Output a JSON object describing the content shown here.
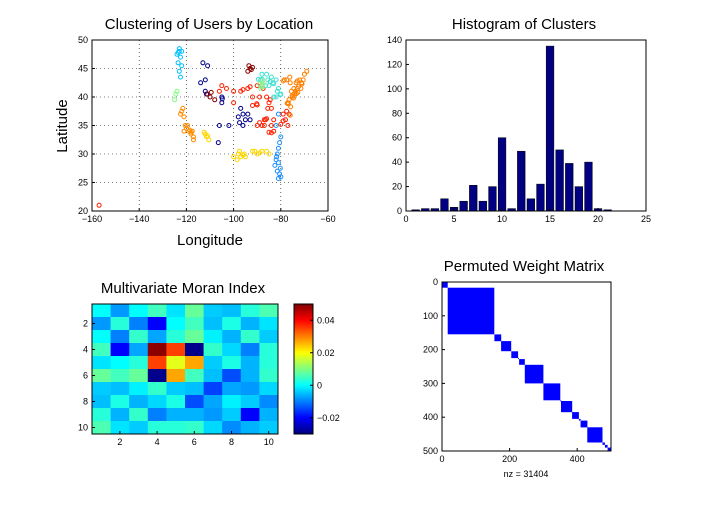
{
  "chart_data": [
    {
      "id": "scatter",
      "type": "scatter",
      "title": "Clustering of Users by Location",
      "xlabel": "Longitude",
      "ylabel": "Latitude",
      "xlim": [
        -160,
        -60
      ],
      "ylim": [
        20,
        50
      ],
      "xticks": [
        -160,
        -140,
        -120,
        -100,
        -80,
        -60
      ],
      "yticks": [
        20,
        25,
        30,
        35,
        40,
        45,
        50
      ],
      "grid": true,
      "clusters": [
        {
          "color": "#00bfff",
          "points": [
            [
              -124,
              47.5
            ],
            [
              -123,
              48
            ],
            [
              -122.5,
              47
            ],
            [
              -123.5,
              46
            ],
            [
              -122,
              45.5
            ],
            [
              -123,
              44.5
            ],
            [
              -122.5,
              43.5
            ],
            [
              -123,
              48.5
            ],
            [
              -122,
              48
            ],
            [
              -123.5,
              47.8
            ]
          ]
        },
        {
          "color": "#7fff7f",
          "points": [
            [
              -124.5,
              40.5
            ],
            [
              -125,
              39.5
            ],
            [
              -124,
              41
            ]
          ]
        },
        {
          "color": "#ff8c00",
          "points": [
            [
              -122,
              37.5
            ],
            [
              -121.5,
              38
            ],
            [
              -122.5,
              37
            ],
            [
              -121,
              36.5
            ],
            [
              -120.5,
              35
            ],
            [
              -121,
              34
            ],
            [
              -120,
              34.5
            ],
            [
              -119,
              34
            ],
            [
              -118,
              33.8
            ],
            [
              -117.5,
              34
            ],
            [
              -118.5,
              34.2
            ],
            [
              -117,
              33
            ],
            [
              -117,
              32.5
            ],
            [
              -118,
              33.5
            ],
            [
              -119.5,
              35
            ]
          ]
        },
        {
          "color": "#00008b",
          "points": [
            [
              -113,
              46
            ],
            [
              -111,
              45.5
            ],
            [
              -112,
              43
            ],
            [
              -114,
              42.5
            ],
            [
              -112,
              41
            ],
            [
              -111.5,
              40.5
            ],
            [
              -105,
              40
            ],
            [
              -104.8,
              39.7
            ],
            [
              -105,
              39
            ],
            [
              -102,
              35
            ],
            [
              -106,
              35
            ],
            [
              -106.5,
              32
            ],
            [
              -97,
              38
            ],
            [
              -96,
              37
            ],
            [
              -95,
              36
            ],
            [
              -97.5,
              35.5
            ],
            [
              -93,
              36
            ],
            [
              -94,
              37
            ],
            [
              -98,
              36.5
            ],
            [
              -96,
              35
            ]
          ]
        },
        {
          "color": "#1e90ff",
          "points": [
            [
              -81,
              37
            ],
            [
              -82,
              35
            ],
            [
              -80,
              33
            ],
            [
              -80.5,
              32
            ],
            [
              -81,
              31
            ],
            [
              -81.5,
              30
            ],
            [
              -82,
              29
            ],
            [
              -81,
              28.5
            ],
            [
              -82.5,
              28
            ],
            [
              -81.5,
              27
            ],
            [
              -80.5,
              26.5
            ],
            [
              -80,
              26
            ],
            [
              -81,
              25.7
            ],
            [
              -80.2,
              27.5
            ],
            [
              -81.8,
              29.5
            ]
          ]
        },
        {
          "color": "#ffd700",
          "points": [
            [
              -112,
              33.5
            ],
            [
              -111.5,
              33
            ],
            [
              -110.5,
              32.5
            ],
            [
              -112.5,
              33.8
            ],
            [
              -111,
              33.2
            ],
            [
              -98,
              30
            ],
            [
              -97.5,
              30.5
            ],
            [
              -97,
              29.5
            ],
            [
              -96,
              29.8
            ],
            [
              -95,
              29.5
            ],
            [
              -95.5,
              30
            ],
            [
              -100,
              29.5
            ],
            [
              -98.5,
              29
            ],
            [
              -91,
              30.5
            ],
            [
              -90,
              30
            ],
            [
              -92,
              30.5
            ],
            [
              -89,
              30.2
            ],
            [
              -88,
              30.5
            ],
            [
              -86,
              30.5
            ],
            [
              -85,
              30
            ]
          ]
        },
        {
          "color": "#8b0000",
          "points": [
            [
              -93,
              45
            ],
            [
              -92.5,
              44.8
            ],
            [
              -94,
              44.5
            ],
            [
              -92,
              45.2
            ],
            [
              -93.5,
              45.5
            ],
            [
              -110,
              40
            ],
            [
              -109.5,
              40.8
            ],
            [
              -111,
              40.5
            ],
            [
              -108,
              39.5
            ]
          ]
        },
        {
          "color": "#ff2000",
          "points": [
            [
              -105,
              42
            ],
            [
              -106,
              41
            ],
            [
              -103,
              41.5
            ],
            [
              -100,
              41
            ],
            [
              -100,
              39
            ],
            [
              -97,
              41
            ],
            [
              -96,
              41.3
            ],
            [
              -94,
              41.5
            ],
            [
              -93,
              41.8
            ],
            [
              -92,
              40
            ],
            [
              -90,
              42
            ],
            [
              -89,
              40
            ],
            [
              -88,
              41.8
            ],
            [
              -87.5,
              41.5
            ],
            [
              -86,
              40
            ],
            [
              -85,
              39
            ],
            [
              -84.5,
              39.5
            ],
            [
              -84,
              38
            ],
            [
              -85.5,
              38
            ],
            [
              -86.5,
              36
            ],
            [
              -87,
              35
            ],
            [
              -88,
              35
            ],
            [
              -89,
              35.5
            ],
            [
              -90,
              35
            ],
            [
              -84,
              35
            ],
            [
              -83,
              36
            ],
            [
              -83,
              34
            ],
            [
              -84,
              33.7
            ],
            [
              -85,
              33.8
            ],
            [
              -79,
              35.8
            ],
            [
              -80,
              35.2
            ],
            [
              -77,
              35
            ],
            [
              -78,
              36
            ],
            [
              -79,
              37
            ],
            [
              -77.5,
              37.5
            ],
            [
              -76.5,
              37
            ],
            [
              -90,
              38.6
            ],
            [
              -90.2,
              38.8
            ],
            [
              -92,
              38.5
            ],
            [
              -86,
              36.2
            ],
            [
              -87,
              36
            ]
          ]
        },
        {
          "color": "#ff7f00",
          "points": [
            [
              -77,
              39
            ],
            [
              -76.5,
              39.5
            ],
            [
              -75,
              40
            ],
            [
              -75.2,
              40.2
            ],
            [
              -74,
              40.7
            ],
            [
              -74.2,
              40.5
            ],
            [
              -73.8,
              41
            ],
            [
              -73,
              41.5
            ],
            [
              -72.5,
              41.8
            ],
            [
              -71,
              42.3
            ],
            [
              -71.2,
              42.5
            ],
            [
              -70.5,
              43
            ],
            [
              -70,
              44
            ],
            [
              -69,
              44.5
            ],
            [
              -72,
              43
            ],
            [
              -73,
              42.8
            ],
            [
              -73.5,
              42.5
            ],
            [
              -76,
              42.5
            ],
            [
              -77.5,
              43
            ],
            [
              -78.5,
              43
            ],
            [
              -79,
              42.8
            ],
            [
              -76.2,
              43.5
            ],
            [
              -75.5,
              41
            ],
            [
              -74.5,
              41.5
            ],
            [
              -71.5,
              41.5
            ],
            [
              -72.8,
              40.8
            ],
            [
              -73.4,
              40.6
            ],
            [
              -74.6,
              39.8
            ],
            [
              -76.8,
              38.8
            ],
            [
              -77.3,
              38.9
            ],
            [
              -76,
              36.8
            ],
            [
              -75.8,
              38.3
            ]
          ]
        },
        {
          "color": "#40e0d0",
          "points": [
            [
              -88,
              44
            ],
            [
              -88.5,
              43
            ],
            [
              -87.9,
              43.1
            ],
            [
              -89.5,
              43.1
            ],
            [
              -86,
              44
            ],
            [
              -85.5,
              43
            ],
            [
              -84.5,
              42.7
            ],
            [
              -83,
              42.3
            ],
            [
              -83.3,
              42.5
            ],
            [
              -82,
              43
            ],
            [
              -84,
              43.5
            ],
            [
              -85,
              42
            ],
            [
              -86.5,
              42
            ],
            [
              -81,
              41.5
            ],
            [
              -81.5,
              41
            ],
            [
              -82,
              40
            ],
            [
              -83,
              40
            ],
            [
              -80,
              40.5
            ],
            [
              -80.2,
              40.4
            ]
          ]
        },
        {
          "color": "#90ee90",
          "points": [
            [
              -88,
              42.2
            ],
            [
              -87.7,
              42
            ],
            [
              -87.8,
              41.9
            ],
            [
              -88.2,
              41.8
            ],
            [
              -89,
              42.3
            ],
            [
              -87.5,
              42.5
            ],
            [
              -88.5,
              41.5
            ],
            [
              -87.9,
              42.8
            ]
          ]
        }
      ]
    },
    {
      "id": "hist",
      "type": "bar",
      "title": "Histogram of Clusters",
      "xlim": [
        0,
        25
      ],
      "ylim": [
        0,
        140
      ],
      "xticks": [
        0,
        5,
        10,
        15,
        20,
        25
      ],
      "yticks": [
        0,
        20,
        40,
        60,
        80,
        100,
        120,
        140
      ],
      "categories": [
        1,
        2,
        3,
        4,
        5,
        6,
        7,
        8,
        9,
        10,
        11,
        12,
        13,
        14,
        15,
        16,
        17,
        18,
        19,
        20,
        21
      ],
      "values": [
        1,
        2,
        2,
        10,
        3,
        8,
        21,
        8,
        20,
        60,
        2,
        49,
        10,
        22,
        135,
        50,
        39,
        20,
        40,
        2,
        1
      ],
      "color": "#000080"
    },
    {
      "id": "moran",
      "type": "heatmap",
      "title": "Multivariate Moran Index",
      "xticks": [
        2,
        4,
        6,
        8,
        10
      ],
      "yticks": [
        2,
        4,
        6,
        8,
        10
      ],
      "colorbar_ticks": [
        -0.02,
        0,
        0.02,
        0.04
      ],
      "colorbar_tick_labels": [
        "-0.02",
        "0",
        "0.02",
        "0.04"
      ],
      "clim": [
        -0.03,
        0.05
      ],
      "colormap": "jet",
      "matrix": [
        [
          0.0,
          -0.008,
          0.0,
          0.005,
          -0.002,
          0.008,
          -0.004,
          -0.005,
          0.003,
          0.006
        ],
        [
          -0.008,
          0.003,
          -0.01,
          -0.02,
          0.0,
          0.005,
          -0.005,
          0.002,
          -0.006,
          -0.002
        ],
        [
          0.0,
          -0.01,
          0.004,
          -0.007,
          0.003,
          0.008,
          -0.001,
          -0.006,
          0.004,
          -0.004
        ],
        [
          0.005,
          -0.02,
          -0.007,
          0.049,
          0.035,
          -0.029,
          0.004,
          -0.003,
          -0.01,
          0.003
        ],
        [
          -0.002,
          0.0,
          0.003,
          0.035,
          0.018,
          0.027,
          -0.004,
          0.002,
          -0.006,
          0.003
        ],
        [
          0.008,
          0.005,
          0.008,
          -0.029,
          0.027,
          0.005,
          -0.005,
          -0.014,
          -0.006,
          0.004
        ],
        [
          -0.004,
          -0.005,
          -0.001,
          0.004,
          -0.004,
          -0.005,
          -0.015,
          -0.007,
          -0.008,
          -0.003
        ],
        [
          -0.005,
          0.002,
          -0.006,
          -0.003,
          0.002,
          -0.014,
          -0.007,
          -0.001,
          -0.004,
          -0.009
        ],
        [
          0.003,
          -0.006,
          0.004,
          -0.01,
          -0.006,
          -0.006,
          -0.008,
          -0.004,
          -0.02,
          -0.006
        ],
        [
          0.006,
          -0.002,
          -0.004,
          0.003,
          0.003,
          0.004,
          -0.003,
          -0.009,
          -0.006,
          -0.004
        ]
      ]
    },
    {
      "id": "weights",
      "type": "heatmap",
      "title": "Permuted Weight Matrix",
      "xlabel": "nz = 31404",
      "xlim": [
        0,
        500
      ],
      "ylim": [
        0,
        500
      ],
      "xticks": [
        0,
        200,
        400
      ],
      "yticks": [
        0,
        100,
        200,
        300,
        400,
        500
      ],
      "color": "#0000ff",
      "blocks": [
        [
          0,
          17
        ],
        [
          17,
          155
        ],
        [
          155,
          175
        ],
        [
          175,
          205
        ],
        [
          205,
          225
        ],
        [
          225,
          228
        ],
        [
          228,
          245
        ],
        [
          245,
          300
        ],
        [
          300,
          350
        ],
        [
          350,
          352
        ],
        [
          352,
          385
        ],
        [
          385,
          405
        ],
        [
          405,
          410
        ],
        [
          410,
          430
        ],
        [
          430,
          475
        ],
        [
          475,
          482
        ],
        [
          482,
          490
        ],
        [
          490,
          500
        ]
      ]
    }
  ]
}
